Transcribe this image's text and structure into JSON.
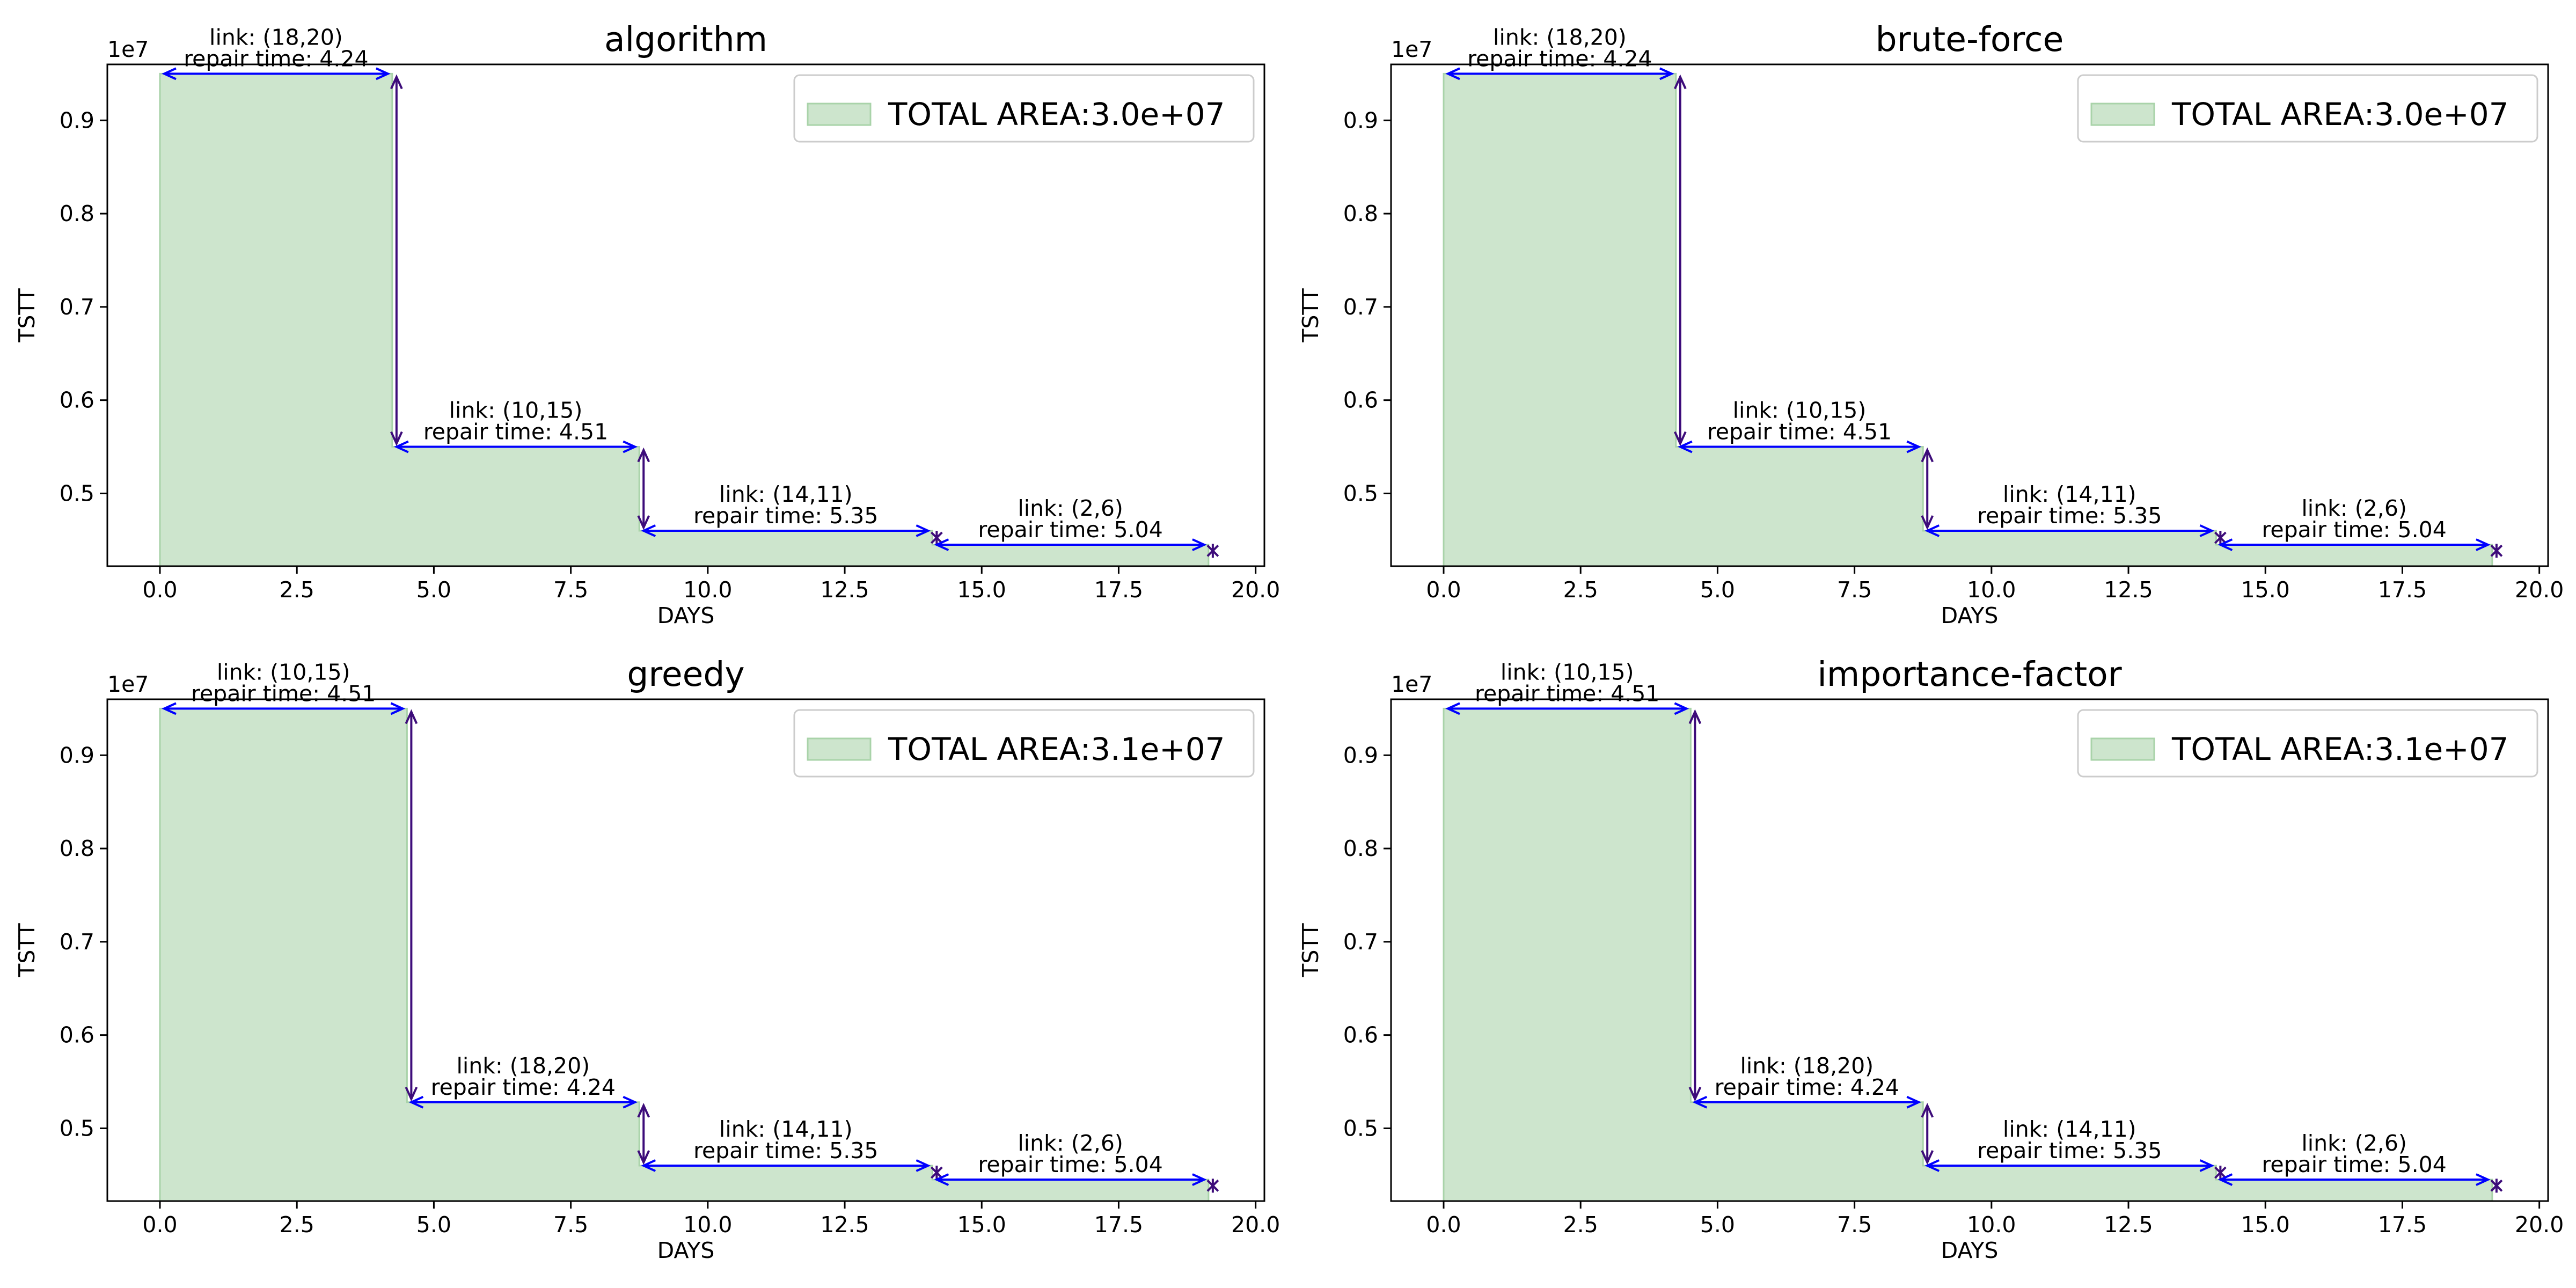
{
  "chart_data": [
    {
      "type": "area",
      "title": "algorithm",
      "xlabel": "DAYS",
      "ylabel": "TSTT",
      "y_offset_label": "1e7",
      "xlim": [
        -0.96,
        20.16
      ],
      "ylim": [
        4220000.0,
        9600000.0
      ],
      "x_ticks": [
        0,
        2.5,
        5,
        7.5,
        10,
        12.5,
        15,
        17.5,
        20
      ],
      "x_tick_labels": [
        "0.0",
        "2.5",
        "5.0",
        "7.5",
        "10.0",
        "12.5",
        "15.0",
        "17.5",
        "20.0"
      ],
      "y_ticks": [
        5000000,
        6000000,
        7000000,
        8000000,
        9000000
      ],
      "y_tick_labels": [
        "0.5",
        "0.6",
        "0.7",
        "0.8",
        "0.9"
      ],
      "legend": {
        "label": "TOTAL AREA:3.0e+07",
        "position": "top-right"
      },
      "steps": [
        {
          "link": "link: (18,20)",
          "repair": "repair time: 4.24",
          "x0": 0,
          "x1": 4.24,
          "y": 9500000
        },
        {
          "link": "link: (10,15)",
          "repair": "repair time: 4.51",
          "x0": 4.24,
          "x1": 8.75,
          "y": 5500000
        },
        {
          "link": "link: (14,11)",
          "repair": "repair time: 5.35",
          "x0": 8.75,
          "x1": 14.1,
          "y": 4600000
        },
        {
          "link": "link: (2,6)",
          "repair": "repair time: 5.04",
          "x0": 14.1,
          "x1": 19.14,
          "y": 4450000
        }
      ],
      "final_y": 4320000,
      "colors": {
        "fill": "#cde5cd",
        "fill_edge": "#a9d3a9",
        "h_arrow": "#0000ff",
        "v_arrow": "#3d0c7a"
      }
    },
    {
      "type": "area",
      "title": "brute-force",
      "xlabel": "DAYS",
      "ylabel": "TSTT",
      "y_offset_label": "1e7",
      "xlim": [
        -0.96,
        20.16
      ],
      "ylim": [
        4220000.0,
        9600000.0
      ],
      "x_ticks": [
        0,
        2.5,
        5,
        7.5,
        10,
        12.5,
        15,
        17.5,
        20
      ],
      "x_tick_labels": [
        "0.0",
        "2.5",
        "5.0",
        "7.5",
        "10.0",
        "12.5",
        "15.0",
        "17.5",
        "20.0"
      ],
      "y_ticks": [
        5000000,
        6000000,
        7000000,
        8000000,
        9000000
      ],
      "y_tick_labels": [
        "0.5",
        "0.6",
        "0.7",
        "0.8",
        "0.9"
      ],
      "legend": {
        "label": "TOTAL AREA:3.0e+07",
        "position": "top-right"
      },
      "steps": [
        {
          "link": "link: (18,20)",
          "repair": "repair time: 4.24",
          "x0": 0,
          "x1": 4.24,
          "y": 9500000
        },
        {
          "link": "link: (10,15)",
          "repair": "repair time: 4.51",
          "x0": 4.24,
          "x1": 8.75,
          "y": 5500000
        },
        {
          "link": "link: (14,11)",
          "repair": "repair time: 5.35",
          "x0": 8.75,
          "x1": 14.1,
          "y": 4600000
        },
        {
          "link": "link: (2,6)",
          "repair": "repair time: 5.04",
          "x0": 14.1,
          "x1": 19.14,
          "y": 4450000
        }
      ],
      "final_y": 4320000,
      "colors": {
        "fill": "#cde5cd",
        "fill_edge": "#a9d3a9",
        "h_arrow": "#0000ff",
        "v_arrow": "#3d0c7a"
      }
    },
    {
      "type": "area",
      "title": "greedy",
      "xlabel": "DAYS",
      "ylabel": "TSTT",
      "y_offset_label": "1e7",
      "xlim": [
        -0.96,
        20.16
      ],
      "ylim": [
        4220000.0,
        9600000.0
      ],
      "x_ticks": [
        0,
        2.5,
        5,
        7.5,
        10,
        12.5,
        15,
        17.5,
        20
      ],
      "x_tick_labels": [
        "0.0",
        "2.5",
        "5.0",
        "7.5",
        "10.0",
        "12.5",
        "15.0",
        "17.5",
        "20.0"
      ],
      "y_ticks": [
        5000000,
        6000000,
        7000000,
        8000000,
        9000000
      ],
      "y_tick_labels": [
        "0.5",
        "0.6",
        "0.7",
        "0.8",
        "0.9"
      ],
      "legend": {
        "label": "TOTAL AREA:3.1e+07",
        "position": "top-right"
      },
      "steps": [
        {
          "link": "link: (10,15)",
          "repair": "repair time: 4.51",
          "x0": 0,
          "x1": 4.51,
          "y": 9500000
        },
        {
          "link": "link: (18,20)",
          "repair": "repair time: 4.24",
          "x0": 4.51,
          "x1": 8.75,
          "y": 5280000
        },
        {
          "link": "link: (14,11)",
          "repair": "repair time: 5.35",
          "x0": 8.75,
          "x1": 14.1,
          "y": 4600000
        },
        {
          "link": "link: (2,6)",
          "repair": "repair time: 5.04",
          "x0": 14.1,
          "x1": 19.14,
          "y": 4450000
        }
      ],
      "final_y": 4320000,
      "colors": {
        "fill": "#cde5cd",
        "fill_edge": "#a9d3a9",
        "h_arrow": "#0000ff",
        "v_arrow": "#3d0c7a"
      }
    },
    {
      "type": "area",
      "title": "importance-factor",
      "xlabel": "DAYS",
      "ylabel": "TSTT",
      "y_offset_label": "1e7",
      "xlim": [
        -0.96,
        20.16
      ],
      "ylim": [
        4220000.0,
        9600000.0
      ],
      "x_ticks": [
        0,
        2.5,
        5,
        7.5,
        10,
        12.5,
        15,
        17.5,
        20
      ],
      "x_tick_labels": [
        "0.0",
        "2.5",
        "5.0",
        "7.5",
        "10.0",
        "12.5",
        "15.0",
        "17.5",
        "20.0"
      ],
      "y_ticks": [
        5000000,
        6000000,
        7000000,
        8000000,
        9000000
      ],
      "y_tick_labels": [
        "0.5",
        "0.6",
        "0.7",
        "0.8",
        "0.9"
      ],
      "legend": {
        "label": "TOTAL AREA:3.1e+07",
        "position": "top-right"
      },
      "steps": [
        {
          "link": "link: (10,15)",
          "repair": "repair time: 4.51",
          "x0": 0,
          "x1": 4.51,
          "y": 9500000
        },
        {
          "link": "link: (18,20)",
          "repair": "repair time: 4.24",
          "x0": 4.51,
          "x1": 8.75,
          "y": 5280000
        },
        {
          "link": "link: (14,11)",
          "repair": "repair time: 5.35",
          "x0": 8.75,
          "x1": 14.1,
          "y": 4600000
        },
        {
          "link": "link: (2,6)",
          "repair": "repair time: 5.04",
          "x0": 14.1,
          "x1": 19.14,
          "y": 4450000
        }
      ],
      "final_y": 4320000,
      "colors": {
        "fill": "#cde5cd",
        "fill_edge": "#a9d3a9",
        "h_arrow": "#0000ff",
        "v_arrow": "#3d0c7a"
      }
    }
  ]
}
